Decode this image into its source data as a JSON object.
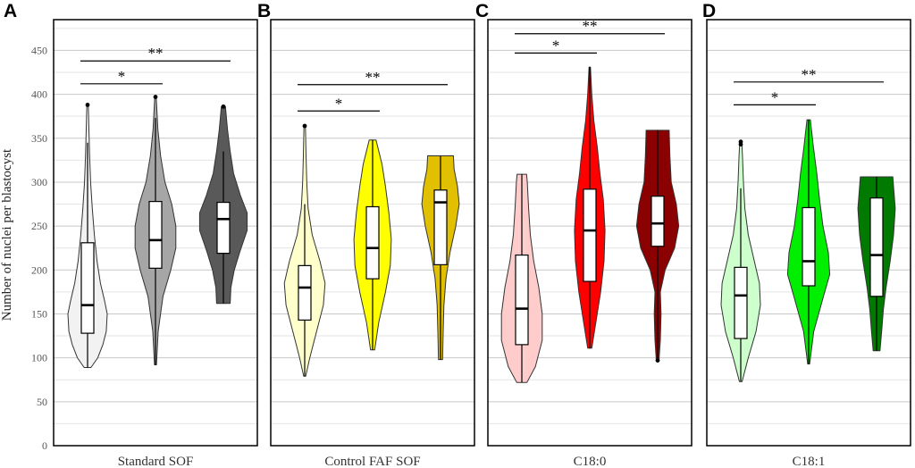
{
  "figure": {
    "ylabel": "Number of nuclei per blastocyst",
    "yticks": [
      0,
      50,
      100,
      150,
      200,
      250,
      300,
      350,
      400,
      450
    ],
    "ylim": [
      0,
      485
    ]
  },
  "chart_data": [
    {
      "type": "violin",
      "panel": "A",
      "xlabel": "Standard SOF",
      "ylabel": "Number of nuclei per blastocyst",
      "ylim": [
        0,
        485
      ],
      "groups": [
        {
          "fill": "#f2f2f2",
          "min": 89,
          "max": 388,
          "q1": 128,
          "median": 160,
          "q3": 231,
          "whisker_low": 89,
          "whisker_high": 345,
          "outliers": [
            388
          ],
          "profile": [
            [
              89,
              0.1
            ],
            [
              100,
              0.3
            ],
            [
              115,
              0.45
            ],
            [
              130,
              0.55
            ],
            [
              150,
              0.58
            ],
            [
              165,
              0.5
            ],
            [
              185,
              0.38
            ],
            [
              210,
              0.28
            ],
            [
              240,
              0.2
            ],
            [
              270,
              0.14
            ],
            [
              300,
              0.09
            ],
            [
              330,
              0.06
            ],
            [
              360,
              0.04
            ],
            [
              388,
              0.02
            ]
          ]
        },
        {
          "fill": "#a6a6a6",
          "min": 92,
          "max": 397,
          "q1": 202,
          "median": 234,
          "q3": 278,
          "whisker_low": 92,
          "whisker_high": 373,
          "outliers": [
            397
          ],
          "profile": [
            [
              92,
              0.03
            ],
            [
              130,
              0.08
            ],
            [
              170,
              0.22
            ],
            [
              200,
              0.45
            ],
            [
              225,
              0.6
            ],
            [
              250,
              0.6
            ],
            [
              275,
              0.48
            ],
            [
              300,
              0.28
            ],
            [
              330,
              0.15
            ],
            [
              360,
              0.07
            ],
            [
              397,
              0.02
            ]
          ]
        },
        {
          "fill": "#595959",
          "min": 162,
          "max": 386,
          "q1": 219,
          "median": 258,
          "q3": 277,
          "whisker_low": 162,
          "whisker_high": 335,
          "outliers": [
            386
          ],
          "profile": [
            [
              162,
              0.2
            ],
            [
              180,
              0.22
            ],
            [
              200,
              0.32
            ],
            [
              220,
              0.48
            ],
            [
              245,
              0.7
            ],
            [
              265,
              0.7
            ],
            [
              285,
              0.5
            ],
            [
              310,
              0.3
            ],
            [
              335,
              0.2
            ],
            [
              360,
              0.12
            ],
            [
              386,
              0.06
            ]
          ]
        }
      ],
      "significance": [
        {
          "from": 0,
          "to": 1,
          "label": "*",
          "y": 412
        },
        {
          "from": 0,
          "to": 2,
          "label": "**",
          "y": 438
        }
      ]
    },
    {
      "type": "violin",
      "panel": "B",
      "xlabel": "Control FAF SOF",
      "ylabel": "",
      "ylim": [
        0,
        485
      ],
      "groups": [
        {
          "fill": "#ffffcc",
          "min": 79,
          "max": 364,
          "q1": 143,
          "median": 180,
          "q3": 205,
          "whisker_low": 79,
          "whisker_high": 275,
          "outliers": [
            364
          ],
          "profile": [
            [
              79,
              0.03
            ],
            [
              100,
              0.15
            ],
            [
              130,
              0.35
            ],
            [
              160,
              0.55
            ],
            [
              185,
              0.6
            ],
            [
              210,
              0.45
            ],
            [
              240,
              0.22
            ],
            [
              270,
              0.1
            ],
            [
              300,
              0.06
            ],
            [
              330,
              0.04
            ],
            [
              364,
              0.02
            ]
          ]
        },
        {
          "fill": "#ffff00",
          "min": 109,
          "max": 348,
          "q1": 190,
          "median": 225,
          "q3": 272,
          "whisker_low": 109,
          "whisker_high": 348,
          "outliers": [],
          "profile": [
            [
              109,
              0.06
            ],
            [
              140,
              0.18
            ],
            [
              175,
              0.38
            ],
            [
              205,
              0.52
            ],
            [
              235,
              0.55
            ],
            [
              265,
              0.48
            ],
            [
              295,
              0.38
            ],
            [
              320,
              0.28
            ],
            [
              348,
              0.1
            ]
          ]
        },
        {
          "fill": "#e0c000",
          "min": 98,
          "max": 330,
          "q1": 206,
          "median": 277,
          "q3": 291,
          "whisker_low": 98,
          "whisker_high": 330,
          "outliers": [],
          "profile": [
            [
              98,
              0.06
            ],
            [
              130,
              0.08
            ],
            [
              160,
              0.1
            ],
            [
              190,
              0.16
            ],
            [
              220,
              0.28
            ],
            [
              250,
              0.45
            ],
            [
              275,
              0.55
            ],
            [
              295,
              0.5
            ],
            [
              315,
              0.4
            ],
            [
              330,
              0.38
            ]
          ]
        }
      ],
      "significance": [
        {
          "from": 0,
          "to": 1,
          "label": "*",
          "y": 381
        },
        {
          "from": 0,
          "to": 2,
          "label": "**",
          "y": 411
        }
      ]
    },
    {
      "type": "violin",
      "panel": "C",
      "xlabel": "C18:0",
      "ylabel": "",
      "ylim": [
        0,
        485
      ],
      "groups": [
        {
          "fill": "#ffcccc",
          "min": 72,
          "max": 309,
          "q1": 115,
          "median": 156,
          "q3": 217,
          "whisker_low": 72,
          "whisker_high": 309,
          "outliers": [],
          "profile": [
            [
              72,
              0.15
            ],
            [
              90,
              0.4
            ],
            [
              120,
              0.6
            ],
            [
              150,
              0.6
            ],
            [
              180,
              0.5
            ],
            [
              210,
              0.35
            ],
            [
              240,
              0.25
            ],
            [
              270,
              0.2
            ],
            [
              300,
              0.16
            ],
            [
              309,
              0.14
            ]
          ]
        },
        {
          "fill": "#ff0000",
          "min": 111,
          "max": 431,
          "q1": 187,
          "median": 245,
          "q3": 292,
          "whisker_low": 111,
          "whisker_high": 431,
          "outliers": [],
          "profile": [
            [
              111,
              0.06
            ],
            [
              140,
              0.18
            ],
            [
              175,
              0.32
            ],
            [
              210,
              0.42
            ],
            [
              245,
              0.45
            ],
            [
              280,
              0.4
            ],
            [
              310,
              0.3
            ],
            [
              340,
              0.22
            ],
            [
              370,
              0.12
            ],
            [
              400,
              0.06
            ],
            [
              431,
              0.02
            ]
          ]
        },
        {
          "fill": "#8b0000",
          "min": 97,
          "max": 359,
          "q1": 227,
          "median": 253,
          "q3": 284,
          "whisker_low": 97,
          "whisker_high": 359,
          "outliers": [
            97
          ],
          "profile": [
            [
              97,
              0.04
            ],
            [
              120,
              0.08
            ],
            [
              150,
              0.1
            ],
            [
              175,
              0.08
            ],
            [
              200,
              0.22
            ],
            [
              225,
              0.5
            ],
            [
              250,
              0.62
            ],
            [
              275,
              0.55
            ],
            [
              300,
              0.4
            ],
            [
              330,
              0.36
            ],
            [
              359,
              0.34
            ]
          ]
        }
      ],
      "significance": [
        {
          "from": 0,
          "to": 1,
          "label": "*",
          "y": 447
        },
        {
          "from": 0,
          "to": 2,
          "label": "**",
          "y": 469
        }
      ]
    },
    {
      "type": "violin",
      "panel": "D",
      "xlabel": "C18:1",
      "ylabel": "",
      "ylim": [
        0,
        485
      ],
      "groups": [
        {
          "fill": "#ccffcc",
          "min": 73,
          "max": 346,
          "q1": 122,
          "median": 171,
          "q3": 203,
          "whisker_low": 73,
          "whisker_high": 293,
          "outliers": [
            343,
            346
          ],
          "profile": [
            [
              73,
              0.04
            ],
            [
              100,
              0.22
            ],
            [
              130,
              0.45
            ],
            [
              160,
              0.58
            ],
            [
              185,
              0.55
            ],
            [
              210,
              0.4
            ],
            [
              240,
              0.22
            ],
            [
              270,
              0.12
            ],
            [
              300,
              0.08
            ],
            [
              330,
              0.05
            ],
            [
              346,
              0.03
            ]
          ]
        },
        {
          "fill": "#00ee00",
          "min": 93,
          "max": 371,
          "q1": 182,
          "median": 210,
          "q3": 271,
          "whisker_low": 93,
          "whisker_high": 371,
          "outliers": [],
          "profile": [
            [
              93,
              0.03
            ],
            [
              130,
              0.15
            ],
            [
              165,
              0.4
            ],
            [
              195,
              0.62
            ],
            [
              220,
              0.58
            ],
            [
              250,
              0.42
            ],
            [
              280,
              0.32
            ],
            [
              310,
              0.24
            ],
            [
              340,
              0.14
            ],
            [
              371,
              0.05
            ]
          ]
        },
        {
          "fill": "#007a00",
          "min": 108,
          "max": 306,
          "q1": 170,
          "median": 217,
          "q3": 282,
          "whisker_low": 108,
          "whisker_high": 306,
          "outliers": [],
          "profile": [
            [
              108,
              0.1
            ],
            [
              130,
              0.15
            ],
            [
              155,
              0.2
            ],
            [
              180,
              0.28
            ],
            [
              210,
              0.4
            ],
            [
              240,
              0.5
            ],
            [
              270,
              0.55
            ],
            [
              295,
              0.5
            ],
            [
              306,
              0.48
            ]
          ]
        }
      ],
      "significance": [
        {
          "from": 0,
          "to": 1,
          "label": "*",
          "y": 388
        },
        {
          "from": 0,
          "to": 2,
          "label": "**",
          "y": 414
        }
      ]
    }
  ]
}
